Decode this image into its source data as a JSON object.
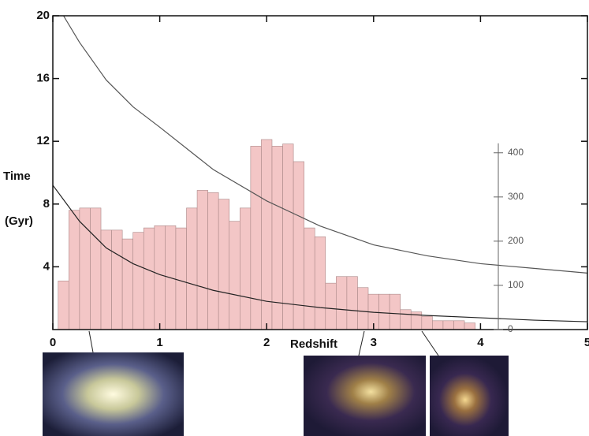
{
  "chart_data": {
    "type": "histogram",
    "y_label": "Time",
    "y_label_unit": "(Gyr)",
    "x_label": "Redshift",
    "xlim": [
      0,
      5
    ],
    "xticks": [
      0,
      1,
      2,
      3,
      4,
      5
    ],
    "ylim": [
      0,
      20
    ],
    "yticks": [
      4,
      8,
      12,
      16,
      20
    ],
    "y2lim": [
      0,
      710
    ],
    "y2ticks": [
      0,
      100,
      200,
      300,
      400
    ],
    "color": "#f3c6c6",
    "bins": [
      0.05,
      0.15,
      0.25,
      0.35,
      0.45,
      0.55,
      0.65,
      0.75,
      0.85,
      0.95,
      1.05,
      1.15,
      1.25,
      1.35,
      1.45,
      1.55,
      1.65,
      1.75,
      1.85,
      1.95,
      2.05,
      2.15,
      2.25,
      2.35,
      2.45,
      2.55,
      2.65,
      2.75,
      2.85,
      2.95,
      3.05,
      3.15,
      3.25,
      3.35,
      3.45,
      3.55,
      3.65,
      3.75,
      3.85,
      3.95
    ],
    "counts": [
      110,
      270,
      275,
      275,
      225,
      225,
      205,
      220,
      230,
      235,
      235,
      230,
      275,
      315,
      310,
      295,
      245,
      275,
      415,
      430,
      415,
      420,
      380,
      230,
      210,
      105,
      120,
      120,
      95,
      80,
      80,
      80,
      45,
      40,
      30,
      20,
      20,
      20,
      15
    ],
    "series": [
      {
        "type": "line",
        "color": "#555555",
        "x": [
          0.1,
          0.25,
          0.5,
          0.75,
          1,
          1.5,
          2,
          2.5,
          3,
          3.5,
          4,
          4.5,
          5
        ],
        "values": [
          20,
          18.3,
          15.9,
          14.2,
          12.9,
          10.2,
          8.2,
          6.6,
          5.4,
          4.7,
          4.2,
          3.9,
          3.6
        ]
      },
      {
        "type": "line",
        "color": "#222222",
        "x": [
          0,
          0.25,
          0.5,
          0.75,
          1,
          1.5,
          2,
          2.5,
          3,
          3.5,
          4,
          4.5,
          5
        ],
        "values": [
          9.2,
          6.9,
          5.2,
          4.2,
          3.5,
          2.5,
          1.8,
          1.4,
          1.1,
          0.9,
          0.75,
          0.6,
          0.5
        ]
      }
    ]
  }
}
